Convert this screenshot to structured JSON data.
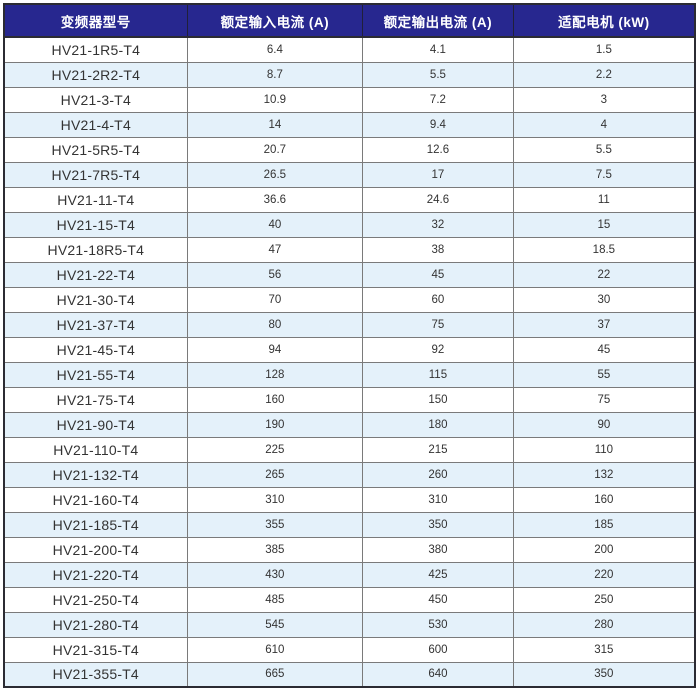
{
  "table": {
    "columns": [
      {
        "key": "model",
        "label": "变频器型号"
      },
      {
        "key": "input",
        "label": "额定输入电流 (A)"
      },
      {
        "key": "output",
        "label": "额定输出电流 (A)"
      },
      {
        "key": "motor",
        "label": "适配电机 (kW)"
      }
    ],
    "rows": [
      {
        "model": "HV21-1R5-T4",
        "input": "6.4",
        "output": "4.1",
        "motor": "1.5"
      },
      {
        "model": "HV21-2R2-T4",
        "input": "8.7",
        "output": "5.5",
        "motor": "2.2"
      },
      {
        "model": "HV21-3-T4",
        "input": "10.9",
        "output": "7.2",
        "motor": "3"
      },
      {
        "model": "HV21-4-T4",
        "input": "14",
        "output": "9.4",
        "motor": "4"
      },
      {
        "model": "HV21-5R5-T4",
        "input": "20.7",
        "output": "12.6",
        "motor": "5.5"
      },
      {
        "model": "HV21-7R5-T4",
        "input": "26.5",
        "output": "17",
        "motor": "7.5"
      },
      {
        "model": "HV21-11-T4",
        "input": "36.6",
        "output": "24.6",
        "motor": "11"
      },
      {
        "model": "HV21-15-T4",
        "input": "40",
        "output": "32",
        "motor": "15"
      },
      {
        "model": "HV21-18R5-T4",
        "input": "47",
        "output": "38",
        "motor": "18.5"
      },
      {
        "model": "HV21-22-T4",
        "input": "56",
        "output": "45",
        "motor": "22"
      },
      {
        "model": "HV21-30-T4",
        "input": "70",
        "output": "60",
        "motor": "30"
      },
      {
        "model": "HV21-37-T4",
        "input": "80",
        "output": "75",
        "motor": "37"
      },
      {
        "model": "HV21-45-T4",
        "input": "94",
        "output": "92",
        "motor": "45"
      },
      {
        "model": "HV21-55-T4",
        "input": "128",
        "output": "115",
        "motor": "55"
      },
      {
        "model": "HV21-75-T4",
        "input": "160",
        "output": "150",
        "motor": "75"
      },
      {
        "model": "HV21-90-T4",
        "input": "190",
        "output": "180",
        "motor": "90"
      },
      {
        "model": "HV21-110-T4",
        "input": "225",
        "output": "215",
        "motor": "110"
      },
      {
        "model": "HV21-132-T4",
        "input": "265",
        "output": "260",
        "motor": "132"
      },
      {
        "model": "HV21-160-T4",
        "input": "310",
        "output": "310",
        "motor": "160"
      },
      {
        "model": "HV21-185-T4",
        "input": "355",
        "output": "350",
        "motor": "185"
      },
      {
        "model": "HV21-200-T4",
        "input": "385",
        "output": "380",
        "motor": "200"
      },
      {
        "model": "HV21-220-T4",
        "input": "430",
        "output": "425",
        "motor": "220"
      },
      {
        "model": "HV21-250-T4",
        "input": "485",
        "output": "450",
        "motor": "250"
      },
      {
        "model": "HV21-280-T4",
        "input": "545",
        "output": "530",
        "motor": "280"
      },
      {
        "model": "HV21-315-T4",
        "input": "610",
        "output": "600",
        "motor": "315"
      },
      {
        "model": "HV21-355-T4",
        "input": "665",
        "output": "640",
        "motor": "350"
      }
    ]
  },
  "colors": {
    "header_bg": "#27278F",
    "header_text": "#FFFFFF",
    "row_bg": "#FFFFFF",
    "row_alt_bg": "#E4F1FA",
    "grid_line": "#7A7A7A",
    "outer_border": "#2B2B33",
    "body_text": "#333333"
  }
}
